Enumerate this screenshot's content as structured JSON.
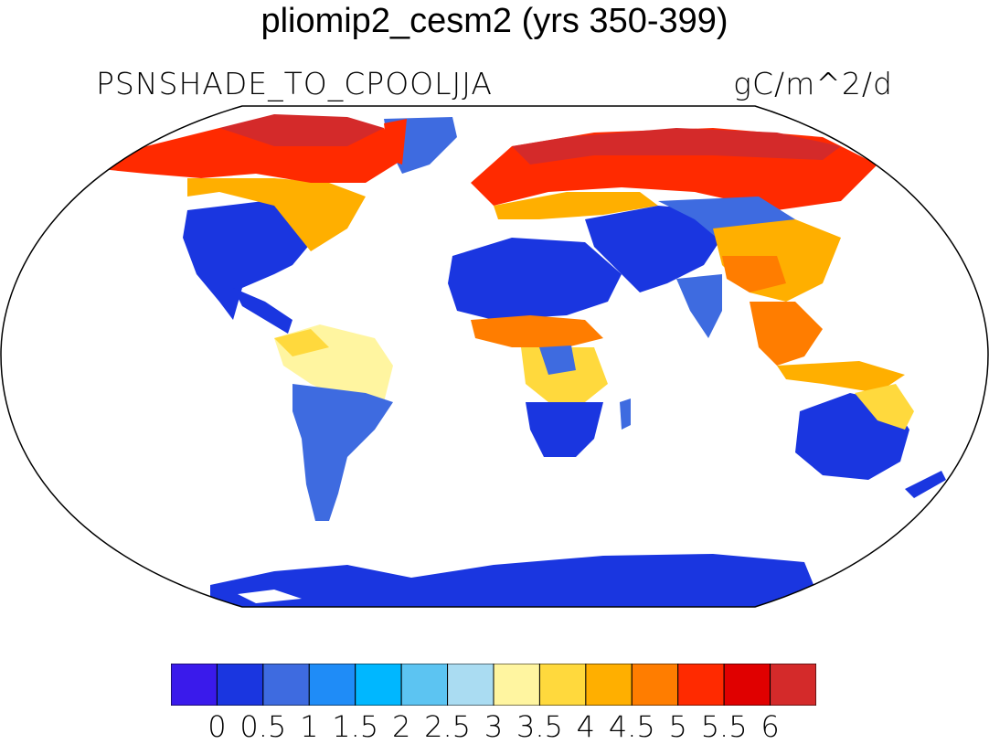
{
  "title": "pliomip2_cesm2 (yrs 350-399)",
  "left_string": "PSNSHADE_TO_CPOOL",
  "center_string": "JJA",
  "right_string": "gC/m^2/d",
  "projection": "Robinson",
  "colorbar": {
    "colors": [
      "#3a1aeb",
      "#1a36e0",
      "#3e6be0",
      "#1f8cf7",
      "#00b7ff",
      "#5cc4f2",
      "#aadcf2",
      "#fff5a0",
      "#ffd93d",
      "#ffaf00",
      "#ff7d00",
      "#ff2a00",
      "#e00000",
      "#d42a2a"
    ],
    "tick_labels": [
      "0",
      "0.5",
      "1",
      "1.5",
      "2",
      "2.5",
      "3",
      "3.5",
      "4",
      "4.5",
      "5",
      "5.5",
      "6"
    ]
  },
  "regions": {
    "low": "#1a36e0",
    "mid_low": "#3e6be0",
    "cyan": "#5cc4f2",
    "yellow": "#fff5a0",
    "gold": "#ffd93d",
    "orange": "#ffaf00",
    "dark_orange": "#ff7d00",
    "red": "#ff2a00",
    "dark_red": "#d42a2a"
  }
}
